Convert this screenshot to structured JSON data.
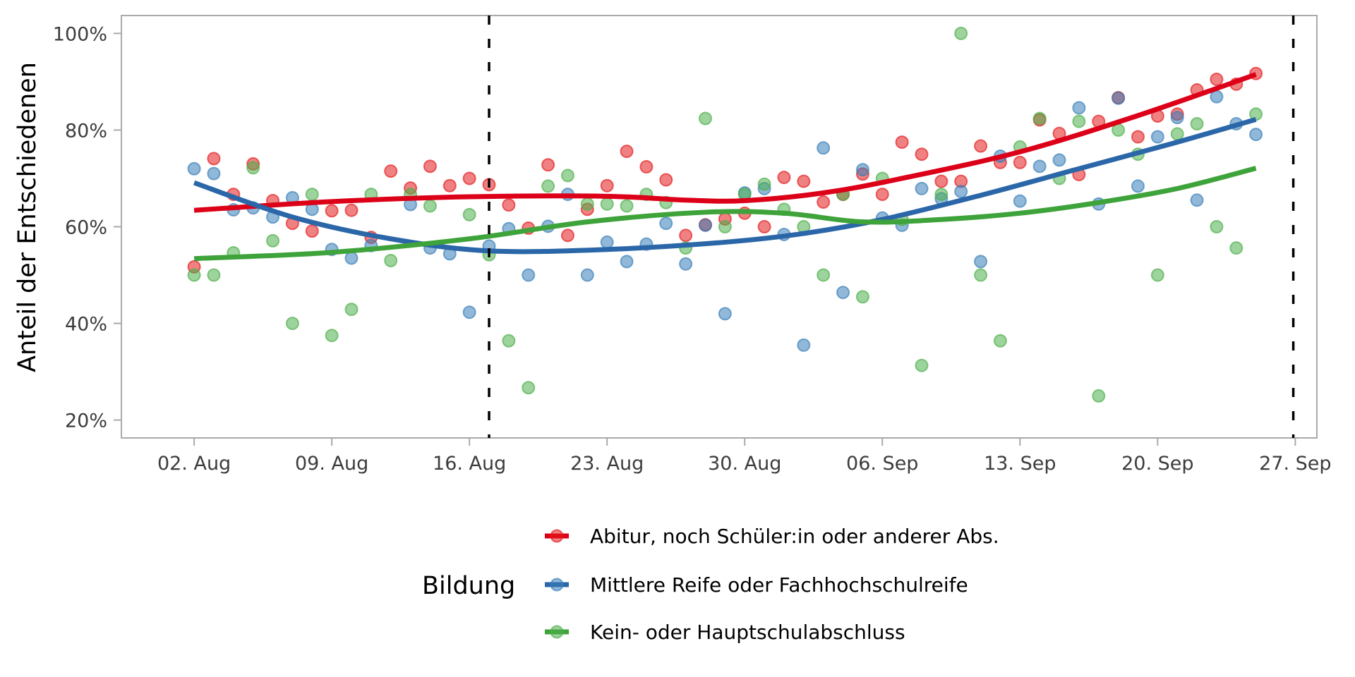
{
  "chart_data": {
    "type": "scatter",
    "title": "",
    "xlabel": "",
    "ylabel": "Anteil der Entschiedenen",
    "x_tick_labels": [
      "02. Aug",
      "09. Aug",
      "16. Aug",
      "23. Aug",
      "30. Aug",
      "06. Sep",
      "13. Sep",
      "20. Sep",
      "27. Sep"
    ],
    "x_tick_days": [
      0,
      7,
      14,
      21,
      28,
      35,
      42,
      49,
      56
    ],
    "y_tick_labels": [
      "20%",
      "40%",
      "60%",
      "80%",
      "100%"
    ],
    "y_tick_values": [
      20,
      40,
      60,
      80,
      100
    ],
    "xlim_days": [
      -3.7,
      57.1
    ],
    "ylim": [
      16.3,
      103.7
    ],
    "x_unit": "days since 02. Aug",
    "vlines_days": [
      15,
      55.9
    ],
    "legend": {
      "title": "Bildung",
      "position": "bottom"
    },
    "series": [
      {
        "name": "Abitur, noch Schüler:in oder anderer Abs.",
        "color": "#e41a1c",
        "line_color": "#dc0018",
        "points": [
          [
            0,
            51.7
          ],
          [
            1,
            74.1
          ],
          [
            2,
            66.7
          ],
          [
            3,
            73.0
          ],
          [
            4,
            65.4
          ],
          [
            5,
            60.7
          ],
          [
            6,
            59.1
          ],
          [
            7,
            63.3
          ],
          [
            8,
            63.4
          ],
          [
            9,
            57.8
          ],
          [
            10,
            71.5
          ],
          [
            11,
            68.0
          ],
          [
            12,
            72.5
          ],
          [
            13,
            68.5
          ],
          [
            14,
            70.0
          ],
          [
            15,
            68.7
          ],
          [
            16,
            64.5
          ],
          [
            17,
            59.7
          ],
          [
            18,
            72.8
          ],
          [
            19,
            58.2
          ],
          [
            20,
            63.6
          ],
          [
            21,
            68.5
          ],
          [
            22,
            75.6
          ],
          [
            23,
            72.4
          ],
          [
            24,
            69.7
          ],
          [
            25,
            58.2
          ],
          [
            26,
            60.4
          ],
          [
            27,
            61.6
          ],
          [
            28,
            62.8
          ],
          [
            29,
            60.0
          ],
          [
            30,
            70.2
          ],
          [
            31,
            69.4
          ],
          [
            32,
            65.1
          ],
          [
            33,
            66.7
          ],
          [
            34,
            70.9
          ],
          [
            35,
            66.7
          ],
          [
            36,
            77.5
          ],
          [
            37,
            75.0
          ],
          [
            38,
            69.4
          ],
          [
            39,
            69.4
          ],
          [
            40,
            76.7
          ],
          [
            41,
            73.3
          ],
          [
            42,
            73.3
          ],
          [
            43,
            82.1
          ],
          [
            44,
            79.3
          ],
          [
            45,
            70.8
          ],
          [
            46,
            81.8
          ],
          [
            47,
            86.7
          ],
          [
            48,
            78.6
          ],
          [
            49,
            82.9
          ],
          [
            50,
            83.3
          ],
          [
            51,
            88.3
          ],
          [
            52,
            90.5
          ],
          [
            53,
            89.5
          ],
          [
            54,
            91.7
          ]
        ],
        "smooth": [
          [
            0,
            63.4
          ],
          [
            7,
            65.2
          ],
          [
            14,
            66.2
          ],
          [
            21,
            66.3
          ],
          [
            25,
            65.5
          ],
          [
            28,
            65.4
          ],
          [
            32,
            67.0
          ],
          [
            36,
            70.0
          ],
          [
            42,
            75.5
          ],
          [
            48,
            83.0
          ],
          [
            54,
            91.5
          ]
        ]
      },
      {
        "name": "Mittlere Reife oder Fachhochschulreife",
        "color": "#377eb8",
        "line_color": "#2b67a8",
        "points": [
          [
            0,
            72.0
          ],
          [
            1,
            71.0
          ],
          [
            2,
            63.5
          ],
          [
            3,
            63.9
          ],
          [
            4,
            62.0
          ],
          [
            5,
            66.0
          ],
          [
            6,
            63.6
          ],
          [
            7,
            55.3
          ],
          [
            8,
            53.5
          ],
          [
            9,
            56.1
          ],
          [
            11,
            64.6
          ],
          [
            12,
            55.6
          ],
          [
            13,
            54.4
          ],
          [
            14,
            42.3
          ],
          [
            15,
            56.0
          ],
          [
            16,
            59.6
          ],
          [
            17,
            50.0
          ],
          [
            18,
            60.1
          ],
          [
            19,
            66.7
          ],
          [
            20,
            50.0
          ],
          [
            21,
            56.8
          ],
          [
            22,
            52.8
          ],
          [
            23,
            56.4
          ],
          [
            24,
            60.7
          ],
          [
            25,
            52.3
          ],
          [
            26,
            60.3
          ],
          [
            27,
            42.0
          ],
          [
            28,
            67.0
          ],
          [
            29,
            67.9
          ],
          [
            30,
            58.4
          ],
          [
            31,
            35.5
          ],
          [
            32,
            76.3
          ],
          [
            33,
            46.4
          ],
          [
            34,
            71.8
          ],
          [
            35,
            61.8
          ],
          [
            36,
            60.3
          ],
          [
            37,
            67.9
          ],
          [
            38,
            65.8
          ],
          [
            39,
            67.3
          ],
          [
            40,
            52.8
          ],
          [
            41,
            74.6
          ],
          [
            42,
            65.3
          ],
          [
            43,
            72.5
          ],
          [
            44,
            73.8
          ],
          [
            45,
            84.6
          ],
          [
            46,
            64.7
          ],
          [
            47,
            86.6
          ],
          [
            48,
            68.4
          ],
          [
            49,
            78.6
          ],
          [
            50,
            82.6
          ],
          [
            51,
            65.5
          ],
          [
            52,
            86.9
          ],
          [
            53,
            81.3
          ],
          [
            54,
            79.1
          ]
        ],
        "smooth": [
          [
            0,
            69.1
          ],
          [
            5,
            62.0
          ],
          [
            10,
            57.5
          ],
          [
            15,
            55.0
          ],
          [
            21,
            55.3
          ],
          [
            27,
            56.8
          ],
          [
            31,
            58.6
          ],
          [
            35,
            61.5
          ],
          [
            40,
            66.5
          ],
          [
            45,
            72.0
          ],
          [
            50,
            77.5
          ],
          [
            54,
            82.2
          ]
        ]
      },
      {
        "name": "Kein- oder Hauptschulabschluss",
        "color": "#4daf4a",
        "line_color": "#3ea33a",
        "points": [
          [
            0,
            50.0
          ],
          [
            1,
            50.0
          ],
          [
            2,
            54.6
          ],
          [
            3,
            72.2
          ],
          [
            4,
            57.1
          ],
          [
            5,
            40.0
          ],
          [
            6,
            66.7
          ],
          [
            7,
            37.5
          ],
          [
            8,
            42.9
          ],
          [
            9,
            66.7
          ],
          [
            10,
            53.0
          ],
          [
            11,
            66.7
          ],
          [
            12,
            64.3
          ],
          [
            14,
            62.5
          ],
          [
            15,
            54.2
          ],
          [
            16,
            36.4
          ],
          [
            17,
            26.7
          ],
          [
            18,
            68.4
          ],
          [
            19,
            70.6
          ],
          [
            20,
            64.7
          ],
          [
            21,
            64.7
          ],
          [
            22,
            64.3
          ],
          [
            23,
            66.7
          ],
          [
            24,
            65.0
          ],
          [
            25,
            55.6
          ],
          [
            26,
            82.4
          ],
          [
            27,
            60.0
          ],
          [
            28,
            66.7
          ],
          [
            29,
            68.8
          ],
          [
            30,
            63.6
          ],
          [
            31,
            60.0
          ],
          [
            32,
            50.0
          ],
          [
            33,
            66.7
          ],
          [
            34,
            45.5
          ],
          [
            35,
            70.0
          ],
          [
            36,
            61.5
          ],
          [
            37,
            31.3
          ],
          [
            38,
            66.7
          ],
          [
            39,
            100.0
          ],
          [
            40,
            50.0
          ],
          [
            41,
            36.4
          ],
          [
            42,
            76.5
          ],
          [
            43,
            82.4
          ],
          [
            44,
            70.0
          ],
          [
            45,
            81.8
          ],
          [
            46,
            25.0
          ],
          [
            47,
            80.0
          ],
          [
            48,
            75.0
          ],
          [
            49,
            50.0
          ],
          [
            50,
            79.2
          ],
          [
            51,
            81.3
          ],
          [
            52,
            60.0
          ],
          [
            53,
            55.6
          ],
          [
            54,
            83.3
          ]
        ],
        "smooth": [
          [
            0,
            53.4
          ],
          [
            7,
            54.7
          ],
          [
            14,
            57.5
          ],
          [
            20,
            61.0
          ],
          [
            26,
            63.0
          ],
          [
            30,
            62.8
          ],
          [
            34,
            61.0
          ],
          [
            38,
            61.5
          ],
          [
            42,
            62.8
          ],
          [
            46,
            65.0
          ],
          [
            50,
            67.9
          ],
          [
            54,
            72.1
          ]
        ]
      }
    ]
  }
}
